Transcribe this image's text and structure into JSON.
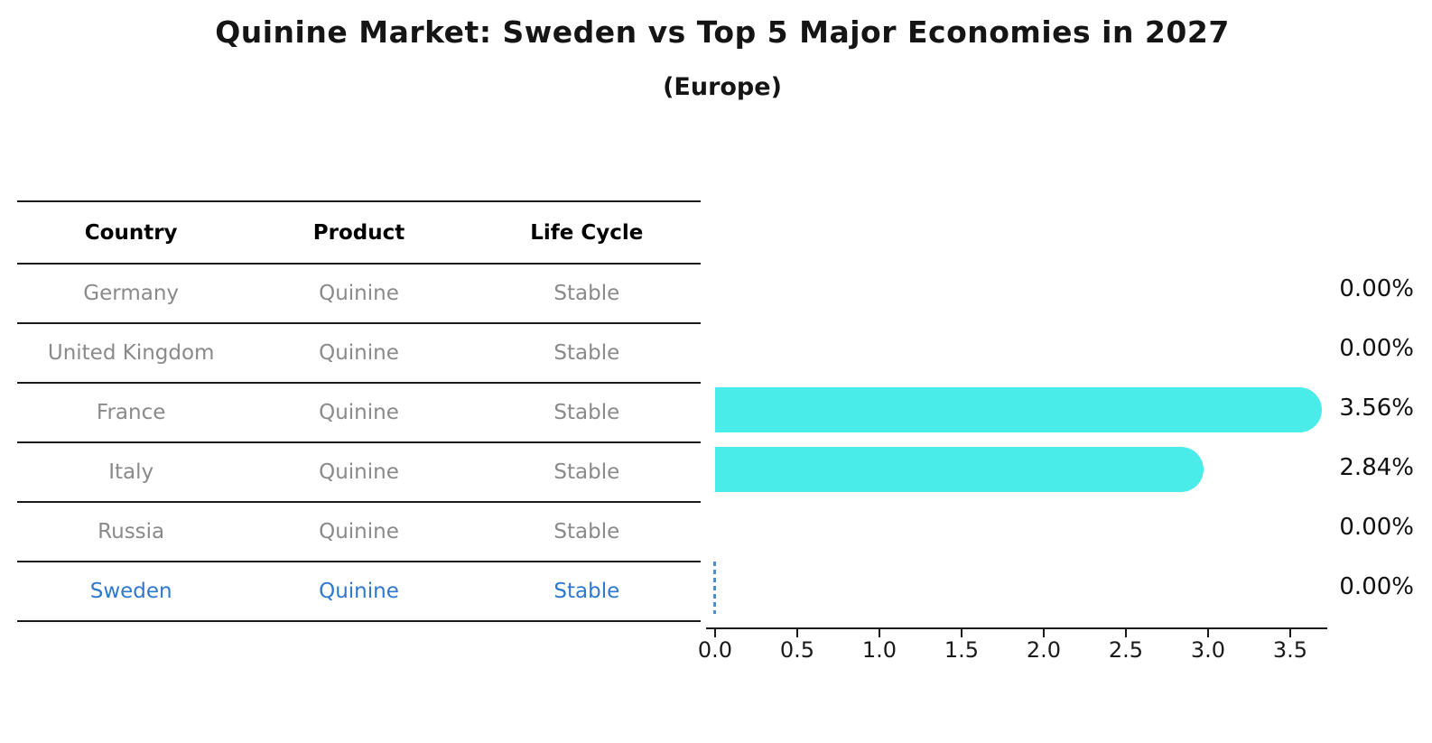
{
  "header": {
    "title": "Quinine Market: Sweden vs Top 5 Major Economies in 2027",
    "subtitle": "(Europe)"
  },
  "table": {
    "columns": [
      "Country",
      "Product",
      "Life Cycle"
    ],
    "rows": [
      {
        "country": "Germany",
        "product": "Quinine",
        "life_cycle": "Stable",
        "highlight": false
      },
      {
        "country": "United Kingdom",
        "product": "Quinine",
        "life_cycle": "Stable",
        "highlight": false
      },
      {
        "country": "France",
        "product": "Quinine",
        "life_cycle": "Stable",
        "highlight": false
      },
      {
        "country": "Italy",
        "product": "Quinine",
        "life_cycle": "Stable",
        "highlight": false
      },
      {
        "country": "Russia",
        "product": "Quinine",
        "life_cycle": "Stable",
        "highlight": false
      },
      {
        "country": "Sweden",
        "product": "Quinine",
        "life_cycle": "Stable",
        "highlight": true
      }
    ]
  },
  "chart_data": {
    "type": "bar",
    "orientation": "horizontal",
    "title": "Quinine Market: Sweden vs Top 5 Major Economies in 2027",
    "subtitle": "(Europe)",
    "categories": [
      "Germany",
      "United Kingdom",
      "France",
      "Italy",
      "Russia",
      "Sweden"
    ],
    "values": [
      0.0,
      0.0,
      3.56,
      2.84,
      0.0,
      0.0
    ],
    "value_labels": [
      "0.00%",
      "0.00%",
      "3.56%",
      "2.84%",
      "0.00%",
      "0.00%"
    ],
    "unit": "%",
    "x_ticks": [
      0.0,
      0.5,
      1.0,
      1.5,
      2.0,
      2.5,
      3.0,
      3.5
    ],
    "x_tick_labels": [
      "0.0",
      "0.5",
      "1.0",
      "1.5",
      "2.0",
      "2.5",
      "3.0",
      "3.5"
    ],
    "xlim": [
      0,
      3.77
    ],
    "grid": false,
    "legend": "none",
    "bar_color": "#4aece9",
    "highlight_text_color": "#2e78cd",
    "highlight_index": 5,
    "highlight_marker": "dashed-line-at-zero",
    "highlight_marker_color": "#4b8fd2"
  }
}
